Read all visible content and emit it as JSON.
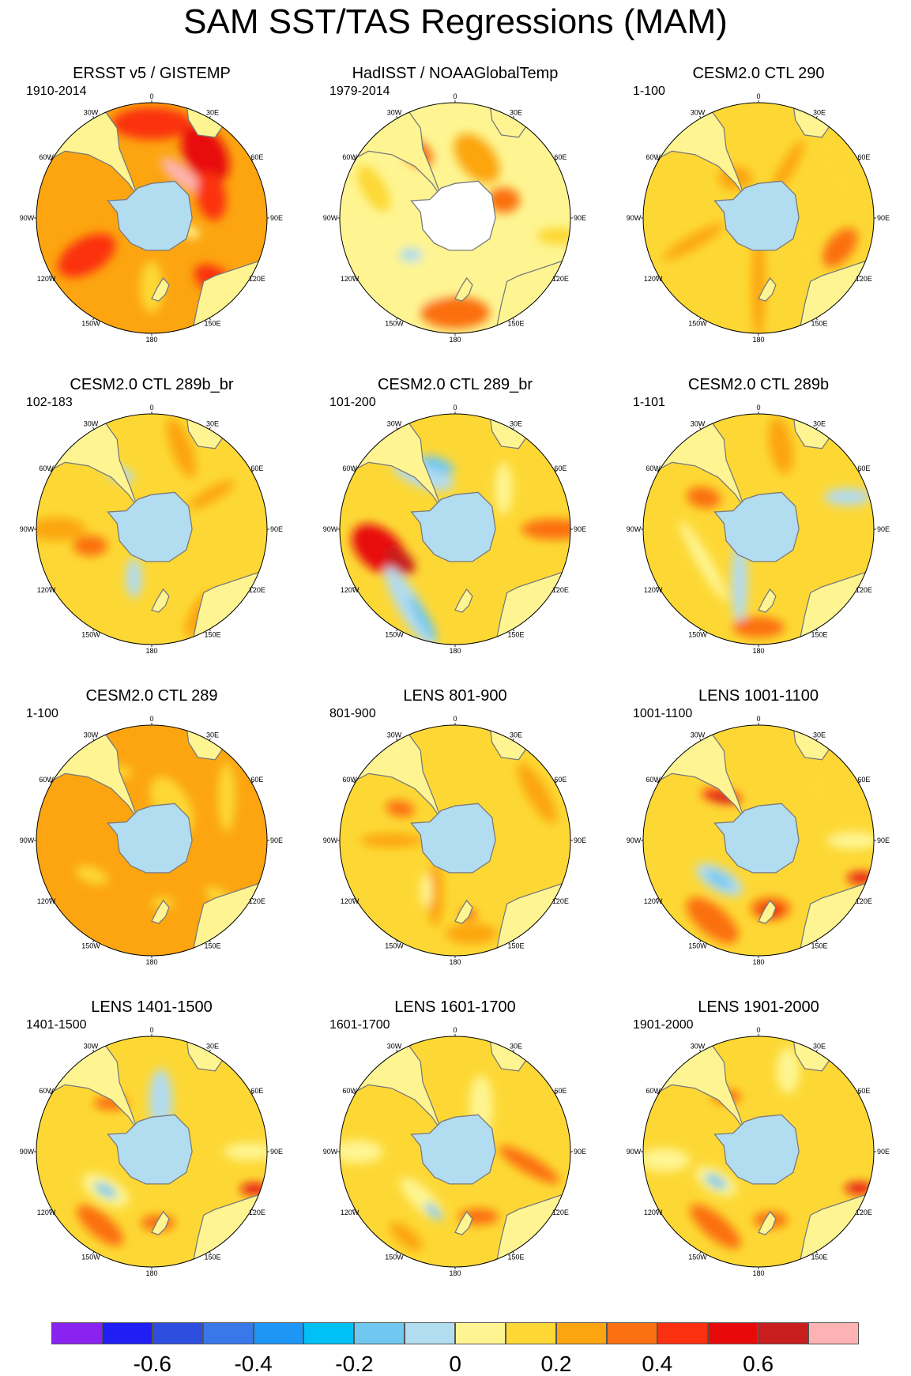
{
  "title": "SAM SST/TAS Regressions (MAM)",
  "lon_labels": [
    "0",
    "30E",
    "60E",
    "90E",
    "120E",
    "150E",
    "180",
    "150W",
    "120W",
    "90W",
    "60W",
    "30W"
  ],
  "colors": {
    "ocean_near_zero_neg": "#b2dcf0",
    "ocean_near_zero_pos": "#fef592",
    "land_mask": "#ffffff",
    "coastline": "#7a7a7a"
  },
  "panels": [
    {
      "title": "ERSST v5 / GISTEMP",
      "period": "1910-2014",
      "base": 3,
      "antarctica": "#b2dcf0",
      "land": "#fef592",
      "blobs": [
        {
          "r": 0.82,
          "a": 0,
          "w": 0.28,
          "l": 0.7,
          "v": 5,
          "rot": 0
        },
        {
          "r": 0.72,
          "a": 40,
          "w": 0.36,
          "l": 0.55,
          "v": 6,
          "rot": 60
        },
        {
          "r": 0.45,
          "a": 35,
          "w": 0.15,
          "l": 0.45,
          "v": 8,
          "rot": 40
        },
        {
          "r": 0.55,
          "a": 70,
          "w": 0.25,
          "l": 0.42,
          "v": 5,
          "rot": 80
        },
        {
          "r": 0.65,
          "a": 240,
          "w": 0.3,
          "l": 0.55,
          "v": 5,
          "rot": 150
        },
        {
          "r": 0.75,
          "a": 135,
          "w": 0.22,
          "l": 0.35,
          "v": 5,
          "rot": 30
        },
        {
          "r": 0.6,
          "a": 180,
          "w": 0.2,
          "l": 0.45,
          "v": 2,
          "rot": 90
        },
        {
          "r": 0.35,
          "a": 110,
          "w": 0.1,
          "l": 0.18,
          "v": 1,
          "rot": 20
        }
      ]
    },
    {
      "title": "HadISST / NOAAGlobalTemp",
      "period": "1979-2014",
      "base": 1,
      "antarctica": "#ffffff",
      "land": "#fef592",
      "blobs": [
        {
          "r": 0.55,
          "a": 200,
          "w": 0.33,
          "l": 0.55,
          "v": 1,
          "rot": 100
        },
        {
          "r": 0.5,
          "a": 230,
          "w": 0.12,
          "l": 0.2,
          "v": 0,
          "rot": 0
        },
        {
          "r": 0.82,
          "a": 180,
          "w": 0.28,
          "l": 0.6,
          "v": 4,
          "rot": 0
        },
        {
          "r": 0.45,
          "a": 70,
          "w": 0.22,
          "l": 0.28,
          "v": 4,
          "rot": 0
        },
        {
          "r": 0.65,
          "a": 330,
          "w": 0.2,
          "l": 0.3,
          "v": 4,
          "rot": 40
        },
        {
          "r": 0.55,
          "a": 20,
          "w": 0.3,
          "l": 0.5,
          "v": 3,
          "rot": 50
        },
        {
          "r": 0.75,
          "a": 290,
          "w": 0.2,
          "l": 0.45,
          "v": 2,
          "rot": 60
        },
        {
          "r": 0.9,
          "a": 100,
          "w": 0.15,
          "l": 0.35,
          "v": 2,
          "rot": 0
        }
      ]
    },
    {
      "title": "CESM2.0 CTL 290",
      "period": "1-100",
      "base": 2,
      "antarctica": "#b2dcf0",
      "land": "#fef592",
      "blobs": [
        {
          "r": 0.58,
          "a": 180,
          "w": 0.12,
          "l": 0.95,
          "v": 3,
          "rot": 90
        },
        {
          "r": 0.6,
          "a": 250,
          "w": 0.12,
          "l": 0.6,
          "v": 3,
          "rot": 150
        },
        {
          "r": 0.5,
          "a": 30,
          "w": 0.12,
          "l": 0.55,
          "v": 3,
          "rot": 120
        },
        {
          "r": 0.75,
          "a": 110,
          "w": 0.22,
          "l": 0.4,
          "v": 4,
          "rot": 130
        },
        {
          "r": 0.4,
          "a": 330,
          "w": 0.2,
          "l": 0.3,
          "v": 3,
          "rot": 0
        },
        {
          "r": 0.78,
          "a": 60,
          "w": 0.2,
          "l": 0.5,
          "v": 2,
          "rot": 60
        },
        {
          "r": 0.45,
          "a": 120,
          "w": 0.2,
          "l": 0.45,
          "v": 2,
          "rot": 70
        }
      ]
    },
    {
      "title": "CESM2.0 CTL 289b_br",
      "period": "102-183",
      "base": 2,
      "antarctica": "#b2dcf0",
      "land": "#fef592",
      "blobs": [
        {
          "r": 0.55,
          "a": 255,
          "w": 0.18,
          "l": 0.3,
          "v": 4,
          "rot": 0
        },
        {
          "r": 0.82,
          "a": 270,
          "w": 0.2,
          "l": 0.5,
          "v": 3,
          "rot": 0
        },
        {
          "r": 0.45,
          "a": 200,
          "w": 0.14,
          "l": 0.35,
          "v": 0,
          "rot": 90
        },
        {
          "r": 0.75,
          "a": 20,
          "w": 0.18,
          "l": 0.55,
          "v": 3,
          "rot": 70
        },
        {
          "r": 0.85,
          "a": 150,
          "w": 0.18,
          "l": 0.45,
          "v": 3,
          "rot": 120
        },
        {
          "r": 0.6,
          "a": 60,
          "w": 0.12,
          "l": 0.45,
          "v": 3,
          "rot": 150
        },
        {
          "r": 0.55,
          "a": 330,
          "w": 0.12,
          "l": 0.25,
          "v": 0,
          "rot": 20
        }
      ]
    },
    {
      "title": "CESM2.0 CTL 289_br",
      "period": "101-200",
      "base": 2,
      "antarctica": "#b2dcf0",
      "land": "#fef592",
      "blobs": [
        {
          "r": 0.68,
          "a": 255,
          "w": 0.35,
          "l": 0.55,
          "v": 6,
          "rot": 40
        },
        {
          "r": 0.55,
          "a": 240,
          "w": 0.18,
          "l": 0.3,
          "v": 7,
          "rot": 40
        },
        {
          "r": 0.55,
          "a": 330,
          "w": 0.22,
          "l": 0.55,
          "v": 0,
          "rot": 20
        },
        {
          "r": 0.58,
          "a": 345,
          "w": 0.12,
          "l": 0.3,
          "v": -1,
          "rot": 20
        },
        {
          "r": 0.78,
          "a": 210,
          "w": 0.2,
          "l": 0.8,
          "v": 0,
          "rot": 60
        },
        {
          "r": 0.82,
          "a": 200,
          "w": 0.1,
          "l": 0.45,
          "v": -1,
          "rot": 60
        },
        {
          "r": 0.85,
          "a": 90,
          "w": 0.18,
          "l": 0.55,
          "v": 4,
          "rot": 0
        },
        {
          "r": 0.55,
          "a": 50,
          "w": 0.15,
          "l": 0.45,
          "v": 1,
          "rot": 90
        }
      ]
    },
    {
      "title": "CESM2.0 CTL 289b",
      "period": "1-101",
      "base": 2,
      "antarctica": "#b2dcf0",
      "land": "#fef592",
      "blobs": [
        {
          "r": 0.55,
          "a": 240,
          "w": 0.12,
          "l": 0.8,
          "v": 1,
          "rot": 60
        },
        {
          "r": 0.48,
          "a": 200,
          "w": 0.14,
          "l": 0.75,
          "v": 0,
          "rot": 90
        },
        {
          "r": 0.85,
          "a": 180,
          "w": 0.18,
          "l": 0.45,
          "v": 4,
          "rot": 0
        },
        {
          "r": 0.55,
          "a": 300,
          "w": 0.18,
          "l": 0.3,
          "v": 4,
          "rot": 10
        },
        {
          "r": 0.82,
          "a": 70,
          "w": 0.15,
          "l": 0.4,
          "v": 0,
          "rot": 0
        },
        {
          "r": 0.75,
          "a": 15,
          "w": 0.2,
          "l": 0.5,
          "v": 3,
          "rot": 80
        }
      ]
    },
    {
      "title": "CESM2.0 CTL 289",
      "period": "1-100",
      "base": 3,
      "antarctica": "#b2dcf0",
      "land": "#fef592",
      "blobs": [
        {
          "r": 0.35,
          "a": 30,
          "w": 0.3,
          "l": 0.55,
          "v": 2,
          "rot": 60
        },
        {
          "r": 0.6,
          "a": 240,
          "w": 0.14,
          "l": 0.3,
          "v": 2,
          "rot": 20
        },
        {
          "r": 0.75,
          "a": 60,
          "w": 0.15,
          "l": 0.6,
          "v": 2,
          "rot": 90
        },
        {
          "r": 0.68,
          "a": 330,
          "w": 0.12,
          "l": 0.35,
          "v": 2,
          "rot": 0
        },
        {
          "r": 0.55,
          "a": 170,
          "w": 0.1,
          "l": 0.2,
          "v": 2,
          "rot": 0
        },
        {
          "r": 0.75,
          "a": 130,
          "w": 0.12,
          "l": 0.25,
          "v": 2,
          "rot": 30
        }
      ]
    },
    {
      "title": "LENS 801-900",
      "period": "801-900",
      "base": 2,
      "antarctica": "#b2dcf0",
      "land": "#fef592",
      "blobs": [
        {
          "r": 0.55,
          "a": 270,
          "w": 0.12,
          "l": 0.55,
          "v": 3,
          "rot": 0
        },
        {
          "r": 0.5,
          "a": 200,
          "w": 0.14,
          "l": 0.55,
          "v": 3,
          "rot": 90
        },
        {
          "r": 0.5,
          "a": 210,
          "w": 0.1,
          "l": 0.3,
          "v": 1,
          "rot": 90
        },
        {
          "r": 0.82,
          "a": 170,
          "w": 0.18,
          "l": 0.45,
          "v": 3,
          "rot": 0
        },
        {
          "r": 0.65,
          "a": 170,
          "w": 0.1,
          "l": 0.15,
          "v": 4,
          "rot": 0
        },
        {
          "r": 0.82,
          "a": 60,
          "w": 0.18,
          "l": 0.6,
          "v": 3,
          "rot": 60
        },
        {
          "r": 0.55,
          "a": 300,
          "w": 0.14,
          "l": 0.25,
          "v": 4,
          "rot": 10
        }
      ]
    },
    {
      "title": "LENS 1001-1100",
      "period": "1001-1100",
      "base": 2,
      "antarctica": "#b2dcf0",
      "land": "#fef592",
      "blobs": [
        {
          "r": 0.48,
          "a": 225,
          "w": 0.2,
          "l": 0.45,
          "v": 0,
          "rot": 30
        },
        {
          "r": 0.48,
          "a": 225,
          "w": 0.1,
          "l": 0.25,
          "v": -1,
          "rot": 30
        },
        {
          "r": 0.8,
          "a": 210,
          "w": 0.25,
          "l": 0.55,
          "v": 4,
          "rot": 40
        },
        {
          "r": 0.6,
          "a": 170,
          "w": 0.2,
          "l": 0.35,
          "v": 4,
          "rot": 0
        },
        {
          "r": 0.62,
          "a": 170,
          "w": 0.1,
          "l": 0.2,
          "v": 6,
          "rot": 0
        },
        {
          "r": 0.5,
          "a": 320,
          "w": 0.12,
          "l": 0.35,
          "v": 5,
          "rot": 10
        },
        {
          "r": 0.48,
          "a": 320,
          "w": 0.06,
          "l": 0.25,
          "v": 7,
          "rot": 10
        },
        {
          "r": 0.95,
          "a": 110,
          "w": 0.1,
          "l": 0.25,
          "v": 6,
          "rot": 0
        },
        {
          "r": 0.82,
          "a": 90,
          "w": 0.15,
          "l": 0.45,
          "v": 1,
          "rot": 0
        },
        {
          "r": 0.7,
          "a": 50,
          "w": 0.18,
          "l": 0.4,
          "v": 2,
          "rot": 90
        }
      ]
    },
    {
      "title": "LENS 1401-1500",
      "period": "1401-1500",
      "base": 2,
      "antarctica": "#b2dcf0",
      "land": "#fef592",
      "blobs": [
        {
          "r": 0.52,
          "a": 230,
          "w": 0.22,
          "l": 0.45,
          "v": 1,
          "rot": 30
        },
        {
          "r": 0.52,
          "a": 230,
          "w": 0.1,
          "l": 0.22,
          "v": -1,
          "rot": 30
        },
        {
          "r": 0.78,
          "a": 215,
          "w": 0.2,
          "l": 0.5,
          "v": 4,
          "rot": 40
        },
        {
          "r": 0.62,
          "a": 175,
          "w": 0.14,
          "l": 0.3,
          "v": 4,
          "rot": 0
        },
        {
          "r": 0.95,
          "a": 110,
          "w": 0.1,
          "l": 0.25,
          "v": 6,
          "rot": 0
        },
        {
          "r": 0.45,
          "a": 10,
          "w": 0.2,
          "l": 0.55,
          "v": 0,
          "rot": 90
        },
        {
          "r": 0.55,
          "a": 320,
          "w": 0.12,
          "l": 0.3,
          "v": 4,
          "rot": 0
        },
        {
          "r": 0.85,
          "a": 90,
          "w": 0.15,
          "l": 0.45,
          "v": 1,
          "rot": 0
        }
      ]
    },
    {
      "title": "LENS 1601-1700",
      "period": "1601-1700",
      "base": 2,
      "antarctica": "#b2dcf0",
      "land": "#fef592",
      "blobs": [
        {
          "r": 0.5,
          "a": 215,
          "w": 0.18,
          "l": 0.5,
          "v": 1,
          "rot": 45
        },
        {
          "r": 0.55,
          "a": 200,
          "w": 0.08,
          "l": 0.2,
          "v": -1,
          "rot": 45
        },
        {
          "r": 0.6,
          "a": 160,
          "w": 0.14,
          "l": 0.35,
          "v": 4,
          "rot": 0
        },
        {
          "r": 0.85,
          "a": 210,
          "w": 0.15,
          "l": 0.35,
          "v": 3,
          "rot": 40
        },
        {
          "r": 0.45,
          "a": 30,
          "w": 0.2,
          "l": 0.55,
          "v": 1,
          "rot": 90
        },
        {
          "r": 0.65,
          "a": 100,
          "w": 0.15,
          "l": 0.6,
          "v": 4,
          "rot": 30
        },
        {
          "r": 0.85,
          "a": 270,
          "w": 0.2,
          "l": 0.45,
          "v": 1,
          "rot": 0
        }
      ]
    },
    {
      "title": "LENS 1901-2000",
      "period": "1901-2000",
      "base": 2,
      "antarctica": "#b2dcf0",
      "land": "#fef592",
      "blobs": [
        {
          "r": 0.45,
          "a": 235,
          "w": 0.2,
          "l": 0.4,
          "v": 1,
          "rot": 30
        },
        {
          "r": 0.45,
          "a": 235,
          "w": 0.1,
          "l": 0.22,
          "v": -1,
          "rot": 30
        },
        {
          "r": 0.82,
          "a": 265,
          "w": 0.2,
          "l": 0.45,
          "v": 1,
          "rot": 0
        },
        {
          "r": 0.75,
          "a": 210,
          "w": 0.2,
          "l": 0.55,
          "v": 4,
          "rot": 40
        },
        {
          "r": 0.6,
          "a": 170,
          "w": 0.14,
          "l": 0.3,
          "v": 4,
          "rot": 0
        },
        {
          "r": 0.93,
          "a": 110,
          "w": 0.1,
          "l": 0.25,
          "v": 6,
          "rot": 0
        },
        {
          "r": 0.55,
          "a": 330,
          "w": 0.12,
          "l": 0.25,
          "v": 4,
          "rot": 0
        },
        {
          "r": 0.75,
          "a": 20,
          "w": 0.2,
          "l": 0.4,
          "v": 1,
          "rot": 90
        }
      ]
    }
  ],
  "colorbar": {
    "colors": [
      "#8a23f0",
      "#1e1ef5",
      "#2e4ee0",
      "#3a78ea",
      "#1e96f5",
      "#00c0f5",
      "#70c8f0",
      "#b2dcf0",
      "#fef592",
      "#fdd835",
      "#fca510",
      "#fb7010",
      "#fb3010",
      "#e80a0a",
      "#c81e1e",
      "#fdb3b3"
    ],
    "tick_labels": [
      "-0.6",
      "-0.4",
      "-0.2",
      "0",
      "0.2",
      "0.4",
      "0.6"
    ],
    "tick_box_index": [
      2,
      4,
      6,
      8,
      10,
      12,
      14
    ]
  }
}
